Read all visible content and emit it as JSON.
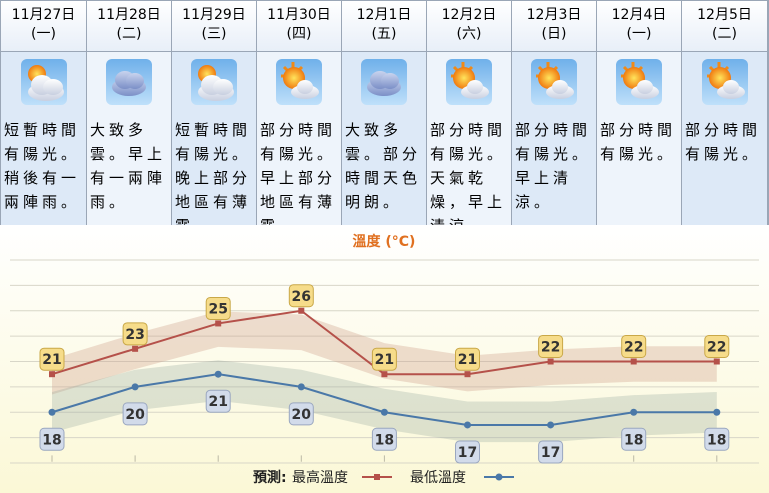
{
  "days": [
    {
      "date": "11月27日",
      "weekday": "(一)",
      "icon": "sun-cloud-icon",
      "desc": "短暫時間有陽光。稍後有一兩陣雨。"
    },
    {
      "date": "11月28日",
      "weekday": "(二)",
      "icon": "cloud-icon",
      "desc": "大致多雲。早上有一兩陣雨。"
    },
    {
      "date": "11月29日",
      "weekday": "(三)",
      "icon": "sun-cloud-icon",
      "desc": "短暫時間有陽光。晚上部分地區有薄霧。"
    },
    {
      "date": "11月30日",
      "weekday": "(四)",
      "icon": "sun-partly-cloudy-icon",
      "desc": "部分時間有陽光。早上部分地區有薄霧。"
    },
    {
      "date": "12月1日",
      "weekday": "(五)",
      "icon": "cloud-icon",
      "desc": "大致多雲。部分時間天色明朗。"
    },
    {
      "date": "12月2日",
      "weekday": "(六)",
      "icon": "sun-partly-cloudy-icon",
      "desc": "部分時間有陽光。天氣乾燥，早上清涼。"
    },
    {
      "date": "12月3日",
      "weekday": "(日)",
      "icon": "sun-partly-cloudy-icon",
      "desc": "部分時間有陽光。早上清涼。"
    },
    {
      "date": "12月4日",
      "weekday": "(一)",
      "icon": "sun-partly-cloudy-icon",
      "desc": "部分時間有陽光。"
    },
    {
      "date": "12月5日",
      "weekday": "(二)",
      "icon": "sun-partly-cloudy-icon",
      "desc": "部分時間有陽光。"
    }
  ],
  "chart_data": {
    "type": "line",
    "title": "溫度 (°C)",
    "categories": [
      "11月27日",
      "11月28日",
      "11月29日",
      "11月30日",
      "12月1日",
      "12月2日",
      "12月3日",
      "12月4日",
      "12月5日"
    ],
    "series": [
      {
        "name": "最高溫度",
        "values": [
          21,
          23,
          25,
          26,
          21,
          21,
          22,
          22,
          22
        ],
        "color": "#b5514a"
      },
      {
        "name": "最低溫度",
        "values": [
          18,
          20,
          21,
          20,
          18,
          17,
          17,
          18,
          18
        ],
        "color": "#4a78a8"
      }
    ],
    "ylim": [
      14,
      30
    ],
    "grid": true,
    "legend_prefix": "預測:",
    "legend_position": "bottom"
  },
  "colors": {
    "title": "#e07020",
    "label_fill": "#f6dc8a",
    "label_fill_low": "#d2dbea"
  }
}
